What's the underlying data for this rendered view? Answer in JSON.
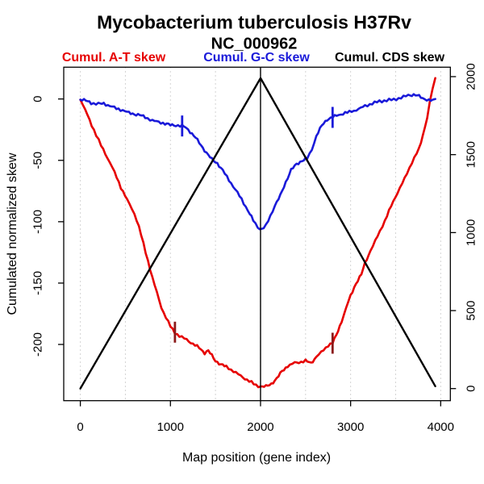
{
  "title": "Mycobacterium tuberculosis H37Rv",
  "subtitle": "NC_000962",
  "legend": [
    {
      "label": "Cumul. A-T skew",
      "color": "#e60000"
    },
    {
      "label": "Cumul. G-C skew",
      "color": "#1a1ad9"
    },
    {
      "label": "Cumul. CDS skew",
      "color": "#000000"
    }
  ],
  "colors": {
    "grid": "#c6c6c6",
    "axis": "#000000",
    "marker_at": "#8b1a1a",
    "marker_gc": "#1a1ad9"
  },
  "chart_data": {
    "type": "line",
    "title": "Mycobacterium tuberculosis H37Rv",
    "subtitle": "NC_000962",
    "xlabel": "Map position (gene index)",
    "ylabel_left": "Cumulated normalized skew",
    "ylabel_right": "",
    "x_ticks": [
      0,
      1000,
      2000,
      3000,
      4000
    ],
    "y_left_ticks": [
      0,
      -50,
      -100,
      -150,
      -200
    ],
    "y_right_ticks": [
      0,
      500,
      1000,
      1500,
      2000
    ],
    "xlim": [
      -184,
      4107
    ],
    "ylim_left": [
      -246,
      26
    ],
    "ylim_right": [
      -78,
      2061
    ],
    "grid": "vertical-dotted",
    "gridlines_x": [
      0,
      500,
      1000,
      1500,
      2000,
      2500,
      3000,
      3500,
      4000
    ],
    "vline_x": 2000,
    "legend_position": "top",
    "series": [
      {
        "name": "Cumul. A-T skew",
        "color": "#e60000",
        "axis": "left",
        "x": [
          0,
          80,
          150,
          230,
          300,
          380,
          450,
          520,
          600,
          650,
          700,
          750,
          800,
          850,
          900,
          950,
          1000,
          1050,
          1100,
          1180,
          1250,
          1320,
          1380,
          1420,
          1460,
          1500,
          1560,
          1620,
          1700,
          1780,
          1850,
          1900,
          1950,
          2000,
          2060,
          2120,
          2180,
          2240,
          2300,
          2380,
          2450,
          2500,
          2560,
          2620,
          2700,
          2750,
          2800,
          2840,
          2900,
          2950,
          3000,
          3060,
          3120,
          3160,
          3220,
          3300,
          3380,
          3450,
          3520,
          3600,
          3680,
          3760,
          3800,
          3850,
          3880,
          3910,
          3940
        ],
        "y": [
          0,
          -13,
          -25,
          -38,
          -48,
          -60,
          -72,
          -82,
          -93,
          -104,
          -118,
          -132,
          -146,
          -158,
          -170,
          -178,
          -185,
          -190,
          -193,
          -196,
          -200,
          -203,
          -207,
          -205,
          -209,
          -213,
          -216,
          -218,
          -222,
          -226,
          -229,
          -231,
          -233,
          -234,
          -234,
          -232,
          -228,
          -222,
          -218,
          -215,
          -214,
          -213,
          -215,
          -210,
          -205,
          -201,
          -199,
          -193,
          -181,
          -170,
          -160,
          -150,
          -143,
          -134,
          -124,
          -112,
          -99,
          -87,
          -76,
          -65,
          -52,
          -41,
          -30,
          -15,
          -2,
          8,
          17
        ]
      },
      {
        "name": "Cumul. G-C skew",
        "color": "#1a1ad9",
        "axis": "left",
        "x": [
          0,
          60,
          120,
          200,
          260,
          330,
          400,
          470,
          540,
          600,
          660,
          720,
          800,
          870,
          940,
          1000,
          1060,
          1130,
          1170,
          1220,
          1280,
          1340,
          1400,
          1460,
          1520,
          1580,
          1650,
          1720,
          1790,
          1860,
          1920,
          1970,
          2010,
          2060,
          2110,
          2160,
          2220,
          2280,
          2340,
          2400,
          2460,
          2520,
          2570,
          2620,
          2680,
          2740,
          2800,
          2870,
          2940,
          3010,
          3090,
          3160,
          3240,
          3320,
          3400,
          3480,
          3560,
          3640,
          3700,
          3760,
          3820,
          3870,
          3910,
          3940
        ],
        "y": [
          0,
          -1,
          -3,
          -4,
          -4,
          -6,
          -8,
          -9,
          -11,
          -12,
          -13,
          -15,
          -18,
          -19,
          -20,
          -21,
          -21,
          -22,
          -23,
          -27,
          -32,
          -38,
          -44,
          -49,
          -52,
          -58,
          -66,
          -74,
          -82,
          -91,
          -99,
          -104,
          -106,
          -103,
          -95,
          -87,
          -79,
          -68,
          -58,
          -53,
          -50,
          -48,
          -41,
          -30,
          -22,
          -17,
          -15,
          -13,
          -11,
          -10,
          -8,
          -6,
          -4,
          -2,
          -1,
          0,
          1,
          3,
          3,
          2,
          0,
          -1,
          -1,
          0
        ]
      },
      {
        "name": "Cumul. CDS skew",
        "color": "#000000",
        "axis": "right",
        "x": [
          0,
          2000,
          3940
        ],
        "y": [
          0,
          1990,
          15
        ]
      }
    ],
    "markers": [
      {
        "x": 1050,
        "y": -190,
        "axis": "left",
        "color": "#8b1a1a",
        "series": "Cumul. A-T skew"
      },
      {
        "x": 2800,
        "y": -199,
        "axis": "left",
        "color": "#8b1a1a",
        "series": "Cumul. A-T skew"
      },
      {
        "x": 1130,
        "y": -22,
        "axis": "left",
        "color": "#1a1ad9",
        "series": "Cumul. G-C skew"
      },
      {
        "x": 2800,
        "y": -15,
        "axis": "left",
        "color": "#1a1ad9",
        "series": "Cumul. G-C skew"
      }
    ]
  }
}
